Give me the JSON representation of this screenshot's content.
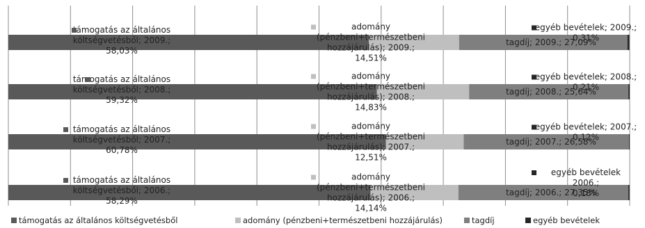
{
  "chart_data": {
    "type": "bar",
    "orientation": "horizontal",
    "stacked": true,
    "percent_stacked": true,
    "categories": [
      "2009.",
      "2008.",
      "2007.",
      "2006."
    ],
    "series": [
      {
        "name": "támogatás az általános költségvetésből",
        "color": "#595959",
        "values": [
          58.03,
          59.32,
          60.78,
          58.29
        ],
        "data_labels": [
          [
            "támogatás az általános",
            "költségvetésből; 2009.;",
            "58,03%"
          ],
          [
            "támogatás az általános",
            "költségvetésből; 2008.;",
            "59,32%"
          ],
          [
            "támogatás az általános",
            "költségvetésből; 2007.;",
            "60,78%"
          ],
          [
            "támogatás az általános",
            "költségvetésből; 2006.;",
            "58,29%"
          ]
        ]
      },
      {
        "name": "adomány (pénzbeni+természetbeni hozzájárulás)",
        "color": "#bfbfbf",
        "values": [
          14.51,
          14.83,
          12.51,
          14.14
        ],
        "data_labels": [
          [
            "adomány",
            "(pénzbeni+természetbeni",
            "hozzájárulás); 2009.;",
            "14,51%"
          ],
          [
            "adomány",
            "(pénzbeni+természetbeni",
            "hozzájárulás); 2008.;",
            "14,83%"
          ],
          [
            "adomány",
            "(pénzbeni+természetbeni",
            "hozzájárulás); 2007.;",
            "12,51%"
          ],
          [
            "adomány",
            "(pénzbeni+természetbeni",
            "hozzájárulás); 2006.;",
            "14,14%"
          ]
        ]
      },
      {
        "name": "tagdíj",
        "color": "#7f7f7f",
        "values": [
          27.09,
          25.64,
          26.58,
          27.35
        ],
        "data_labels": [
          [
            "tagdíj; 2009.; 27,09%"
          ],
          [
            "tagdíj; 2008.; 25,64%"
          ],
          [
            "tagdíj; 2007.; 26,58%"
          ],
          [
            "tagdíj; 2006.; 27,35%"
          ]
        ]
      },
      {
        "name": "egyéb bevételek",
        "color": "#262626",
        "values": [
          0.31,
          0.21,
          0.12,
          0.18
        ],
        "data_labels": [
          [
            "egyéb bevételek; 2009.;",
            "0,31%"
          ],
          [
            "egyéb bevételek; 2008.;",
            "0,21%"
          ],
          [
            "egyéb bevételek; 2007.;",
            "0,12%"
          ],
          [
            "egyéb bevételek",
            "2006.;",
            "0,18%"
          ]
        ]
      }
    ],
    "xlim": [
      0,
      100
    ],
    "grid": true,
    "legend": "bottom"
  }
}
